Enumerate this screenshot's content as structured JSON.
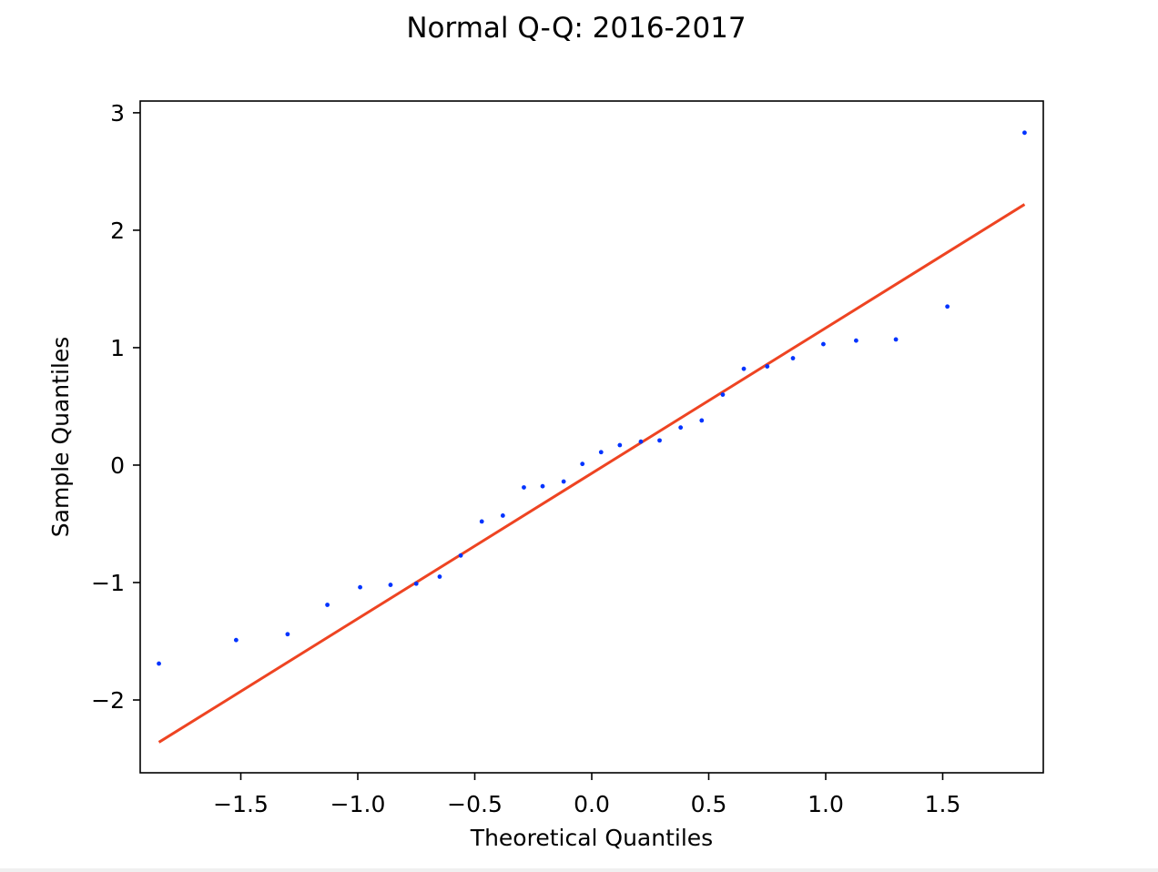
{
  "chart_data": {
    "type": "scatter",
    "title": "Normal Q-Q: 2016-2017",
    "xlabel": "Theoretical Quantiles",
    "ylabel": "Sample Quantiles",
    "xlim": [
      -1.93,
      1.93
    ],
    "ylim": [
      -2.62,
      3.1
    ],
    "x_ticks": [
      -1.5,
      -1.0,
      -0.5,
      0.0,
      0.5,
      1.0,
      1.5
    ],
    "x_tick_labels": [
      "−1.5",
      "−1.0",
      "−0.5",
      "0.0",
      "0.5",
      "1.0",
      "1.5"
    ],
    "y_ticks": [
      -2,
      -1,
      0,
      1,
      2,
      3
    ],
    "y_tick_labels": [
      "−2",
      "−1",
      "0",
      "1",
      "2",
      "3"
    ],
    "grid": false,
    "series": [
      {
        "type": "scatter",
        "color": "#0033ff",
        "x": [
          -1.85,
          -1.52,
          -1.3,
          -1.13,
          -0.99,
          -0.86,
          -0.75,
          -0.65,
          -0.56,
          -0.47,
          -0.38,
          -0.29,
          -0.21,
          -0.12,
          -0.04,
          0.04,
          0.12,
          0.21,
          0.29,
          0.38,
          0.47,
          0.56,
          0.65,
          0.75,
          0.86,
          0.99,
          1.13,
          1.3,
          1.52,
          1.85
        ],
        "y": [
          -1.69,
          -1.49,
          -1.44,
          -1.19,
          -1.04,
          -1.02,
          -1.01,
          -0.95,
          -0.77,
          -0.48,
          -0.43,
          -0.19,
          -0.18,
          -0.14,
          0.01,
          0.11,
          0.17,
          0.2,
          0.21,
          0.32,
          0.38,
          0.6,
          0.82,
          0.84,
          0.91,
          1.03,
          1.06,
          1.07,
          1.35,
          2.83
        ]
      },
      {
        "type": "line",
        "color": "#ee4422",
        "x": [
          -1.85,
          1.85
        ],
        "y": [
          -2.36,
          2.22
        ]
      }
    ]
  }
}
